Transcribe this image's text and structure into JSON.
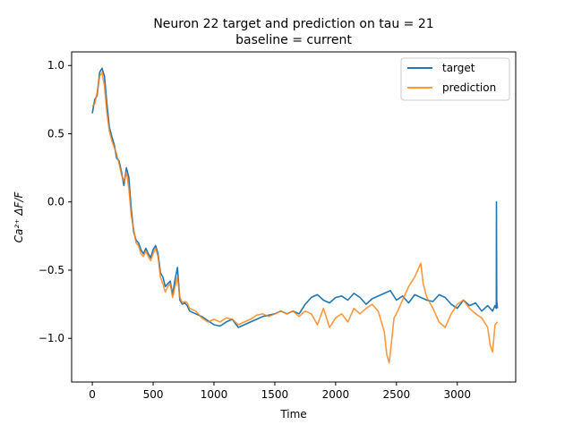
{
  "chart_data": {
    "type": "line",
    "title_line1": "Neuron 22 target and prediction on tau = 21",
    "title_line2": "baseline = current",
    "xlabel": "Time",
    "ylabel": "Ca²⁺ ΔF/F",
    "xlim": [
      -170,
      3480
    ],
    "ylim": [
      -1.32,
      1.1
    ],
    "x_ticks": [
      0,
      500,
      1000,
      1500,
      2000,
      2500,
      3000
    ],
    "x_tick_labels": [
      "0",
      "500",
      "1000",
      "1500",
      "2000",
      "2500",
      "3000"
    ],
    "y_ticks": [
      -1.0,
      -0.5,
      0.0,
      0.5,
      1.0
    ],
    "y_tick_labels": [
      "−1.0",
      "−0.5",
      "0.0",
      "0.5",
      "1.0"
    ],
    "grid": false,
    "legend_position": "upper-right",
    "series": [
      {
        "name": "target",
        "color": "#1f77b4",
        "x": [
          0,
          20,
          40,
          60,
          80,
          100,
          120,
          140,
          160,
          180,
          200,
          220,
          240,
          260,
          280,
          300,
          320,
          340,
          360,
          380,
          400,
          420,
          440,
          460,
          480,
          500,
          520,
          540,
          560,
          580,
          600,
          620,
          640,
          660,
          680,
          700,
          720,
          740,
          760,
          780,
          800,
          850,
          900,
          950,
          1000,
          1050,
          1100,
          1150,
          1200,
          1250,
          1300,
          1350,
          1400,
          1450,
          1500,
          1550,
          1600,
          1650,
          1700,
          1750,
          1800,
          1850,
          1900,
          1950,
          2000,
          2050,
          2100,
          2150,
          2200,
          2250,
          2300,
          2350,
          2400,
          2450,
          2500,
          2550,
          2600,
          2650,
          2700,
          2750,
          2800,
          2850,
          2900,
          2950,
          3000,
          3050,
          3100,
          3150,
          3200,
          3250,
          3290,
          3310,
          3320,
          3322,
          3324,
          3330
        ],
        "values": [
          0.65,
          0.75,
          0.78,
          0.95,
          0.98,
          0.92,
          0.72,
          0.55,
          0.48,
          0.42,
          0.32,
          0.3,
          0.22,
          0.12,
          0.25,
          0.18,
          -0.05,
          -0.22,
          -0.28,
          -0.3,
          -0.35,
          -0.38,
          -0.34,
          -0.38,
          -0.41,
          -0.35,
          -0.32,
          -0.38,
          -0.52,
          -0.55,
          -0.62,
          -0.6,
          -0.58,
          -0.68,
          -0.57,
          -0.48,
          -0.72,
          -0.75,
          -0.74,
          -0.76,
          -0.8,
          -0.82,
          -0.84,
          -0.87,
          -0.9,
          -0.91,
          -0.88,
          -0.86,
          -0.92,
          -0.9,
          -0.88,
          -0.86,
          -0.84,
          -0.83,
          -0.82,
          -0.8,
          -0.82,
          -0.8,
          -0.82,
          -0.75,
          -0.7,
          -0.68,
          -0.72,
          -0.74,
          -0.7,
          -0.69,
          -0.72,
          -0.67,
          -0.7,
          -0.75,
          -0.71,
          -0.69,
          -0.67,
          -0.65,
          -0.72,
          -0.69,
          -0.74,
          -0.68,
          -0.7,
          -0.72,
          -0.73,
          -0.68,
          -0.7,
          -0.75,
          -0.78,
          -0.72,
          -0.76,
          -0.74,
          -0.8,
          -0.76,
          -0.8,
          -0.76,
          -0.78,
          0.0,
          -0.72,
          -0.78
        ]
      },
      {
        "name": "prediction",
        "color": "#ff7f0e",
        "x": [
          0,
          20,
          40,
          60,
          80,
          100,
          120,
          140,
          160,
          180,
          200,
          220,
          240,
          260,
          280,
          300,
          320,
          340,
          360,
          380,
          400,
          420,
          440,
          460,
          480,
          500,
          520,
          540,
          560,
          580,
          600,
          620,
          640,
          660,
          680,
          700,
          720,
          740,
          760,
          780,
          800,
          850,
          900,
          950,
          1000,
          1050,
          1100,
          1150,
          1200,
          1250,
          1300,
          1350,
          1400,
          1450,
          1500,
          1550,
          1600,
          1650,
          1700,
          1750,
          1800,
          1850,
          1900,
          1950,
          2000,
          2050,
          2100,
          2150,
          2200,
          2250,
          2300,
          2350,
          2400,
          2420,
          2440,
          2460,
          2480,
          2500,
          2550,
          2600,
          2650,
          2700,
          2720,
          2750,
          2800,
          2850,
          2900,
          2950,
          3000,
          3050,
          3100,
          3150,
          3200,
          3250,
          3270,
          3290,
          3310,
          3330
        ],
        "values": [
          0.7,
          0.72,
          0.8,
          0.92,
          0.95,
          0.85,
          0.65,
          0.52,
          0.45,
          0.4,
          0.35,
          0.28,
          0.2,
          0.15,
          0.22,
          0.1,
          -0.1,
          -0.2,
          -0.3,
          -0.32,
          -0.38,
          -0.4,
          -0.36,
          -0.4,
          -0.43,
          -0.38,
          -0.34,
          -0.4,
          -0.55,
          -0.6,
          -0.66,
          -0.62,
          -0.6,
          -0.7,
          -0.62,
          -0.55,
          -0.7,
          -0.74,
          -0.73,
          -0.74,
          -0.78,
          -0.8,
          -0.85,
          -0.88,
          -0.86,
          -0.88,
          -0.85,
          -0.86,
          -0.9,
          -0.88,
          -0.86,
          -0.83,
          -0.82,
          -0.84,
          -0.82,
          -0.8,
          -0.82,
          -0.8,
          -0.84,
          -0.8,
          -0.82,
          -0.9,
          -0.78,
          -0.92,
          -0.85,
          -0.82,
          -0.88,
          -0.78,
          -0.82,
          -0.78,
          -0.75,
          -0.8,
          -0.95,
          -1.12,
          -1.18,
          -1.02,
          -0.85,
          -0.82,
          -0.72,
          -0.62,
          -0.55,
          -0.45,
          -0.6,
          -0.7,
          -0.78,
          -0.88,
          -0.92,
          -0.82,
          -0.75,
          -0.72,
          -0.78,
          -0.82,
          -0.85,
          -0.92,
          -1.05,
          -1.1,
          -0.9,
          -0.88
        ]
      }
    ]
  }
}
